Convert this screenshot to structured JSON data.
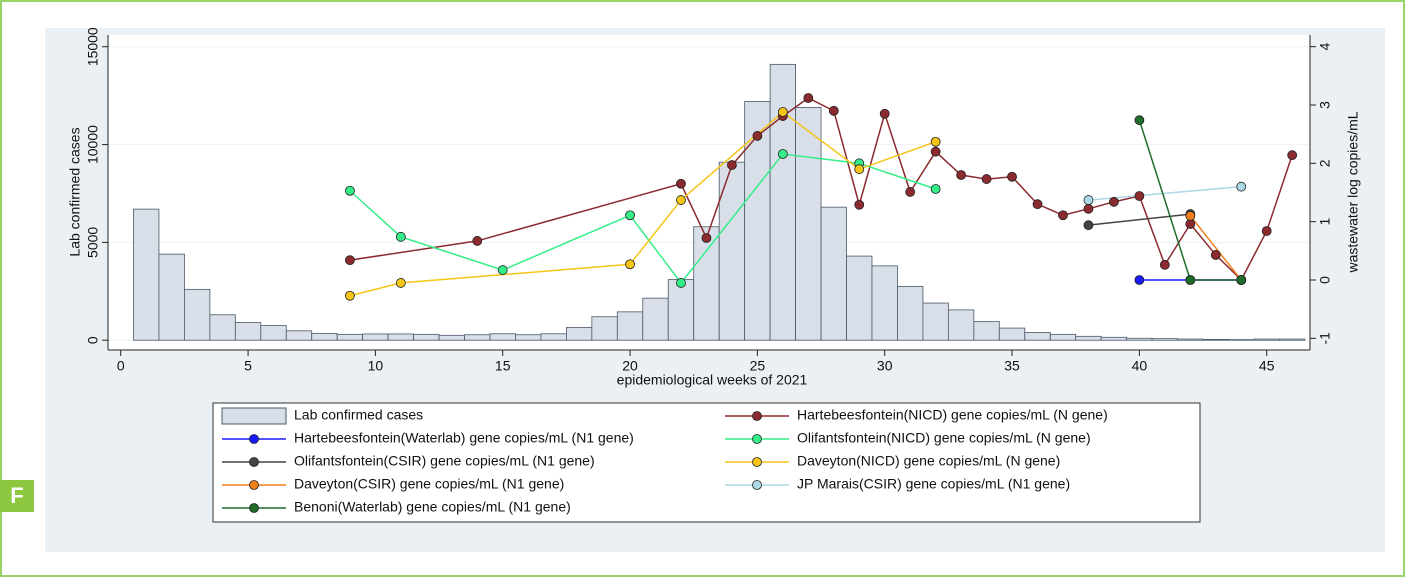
{
  "panel_label": "F",
  "chart_data": {
    "type": "bar-line",
    "xlabel": "epidemiological weeks of 2021",
    "ylabel": "Lab confirmed cases",
    "y2label": "wastewater log copies/mL",
    "xlim": [
      -0.5,
      46.7
    ],
    "xticks": [
      0,
      5,
      10,
      15,
      20,
      25,
      30,
      35,
      40,
      45
    ],
    "ylim": [
      -500,
      15600
    ],
    "yticks": [
      0,
      5000,
      10000,
      15000
    ],
    "y2lim": [
      -1.2,
      4.2
    ],
    "y2ticks": [
      -1,
      0,
      1,
      2,
      3,
      4
    ],
    "grid": true,
    "bars": {
      "name": "Lab confirmed cases",
      "color": "#d9dfe9",
      "x": [
        1,
        2,
        3,
        4,
        5,
        6,
        7,
        8,
        9,
        10,
        11,
        12,
        13,
        14,
        15,
        16,
        17,
        18,
        19,
        20,
        21,
        22,
        23,
        24,
        25,
        26,
        27,
        28,
        29,
        30,
        31,
        32,
        33,
        34,
        35,
        36,
        37,
        38,
        39,
        40,
        41,
        42,
        43,
        44,
        45,
        46
      ],
      "values": [
        6700,
        4400,
        2600,
        1300,
        900,
        750,
        480,
        350,
        300,
        320,
        320,
        300,
        250,
        280,
        330,
        280,
        330,
        650,
        1200,
        1450,
        2150,
        3100,
        5800,
        9100,
        12200,
        14100,
        11900,
        6800,
        4300,
        3800,
        2750,
        1900,
        1550,
        950,
        620,
        400,
        300,
        200,
        150,
        100,
        80,
        60,
        40,
        30,
        60,
        60
      ]
    },
    "series": [
      {
        "name": "Hartebeesfontein(NICD) gene copies/mL (N gene)",
        "color": "#8b2a2f",
        "axis": "y2",
        "x": [
          9,
          14,
          22,
          23,
          24,
          25,
          26,
          27,
          28,
          29,
          30,
          31,
          32,
          33,
          34,
          35,
          36,
          37,
          38,
          39,
          40,
          41,
          42,
          43,
          44,
          45,
          46
        ],
        "values": [
          0.34,
          0.67,
          1.65,
          0.72,
          1.97,
          2.47,
          2.81,
          3.12,
          2.9,
          1.29,
          2.85,
          1.51,
          2.2,
          1.8,
          1.73,
          1.77,
          1.3,
          1.11,
          1.22,
          1.34,
          1.44,
          0.26,
          0.96,
          0.43,
          0,
          0.84,
          2.14
        ]
      },
      {
        "name": "Hartebeesfontein(Waterlab) gene copies/mL (N1 gene)",
        "color": "#1a1aff",
        "axis": "y2",
        "x": [
          40,
          42,
          44
        ],
        "values": [
          0,
          0,
          0
        ]
      },
      {
        "name": "Olifantsfontein(NICD) gene copies/mL (N gene)",
        "color": "#33ee88",
        "axis": "y2",
        "x": [
          9,
          11,
          15,
          20,
          22,
          26,
          29,
          32
        ],
        "values": [
          1.53,
          0.74,
          0.17,
          1.11,
          -0.05,
          2.16,
          2.0,
          1.56
        ]
      },
      {
        "name": "Olifantsfontein(CSIR) gene copies/mL (N1 gene)",
        "color": "#444444",
        "axis": "y2",
        "x": [
          38,
          42
        ],
        "values": [
          0.94,
          1.13
        ]
      },
      {
        "name": "Daveyton(NICD) gene copies/mL (N gene)",
        "color": "#f5c518",
        "axis": "y2",
        "x": [
          9,
          11,
          20,
          22,
          26,
          29,
          32
        ],
        "values": [
          -0.27,
          -0.05,
          0.27,
          1.37,
          2.88,
          1.9,
          2.37
        ]
      },
      {
        "name": "Daveyton(CSIR) gene copies/mL (N1 gene)",
        "color": "#f07f1a",
        "axis": "y2",
        "x": [
          42,
          44
        ],
        "values": [
          1.1,
          0
        ]
      },
      {
        "name": "JP Marais(CSIR) gene copies/mL (N1 gene)",
        "color": "#add8e6",
        "axis": "y2",
        "x": [
          38,
          44
        ],
        "values": [
          1.37,
          1.6
        ]
      },
      {
        "name": "Benoni(Waterlab) gene copies/mL (N1 gene)",
        "color": "#1e6b2a",
        "axis": "y2",
        "x": [
          40,
          42,
          44
        ],
        "values": [
          2.74,
          0,
          0
        ]
      }
    ]
  }
}
